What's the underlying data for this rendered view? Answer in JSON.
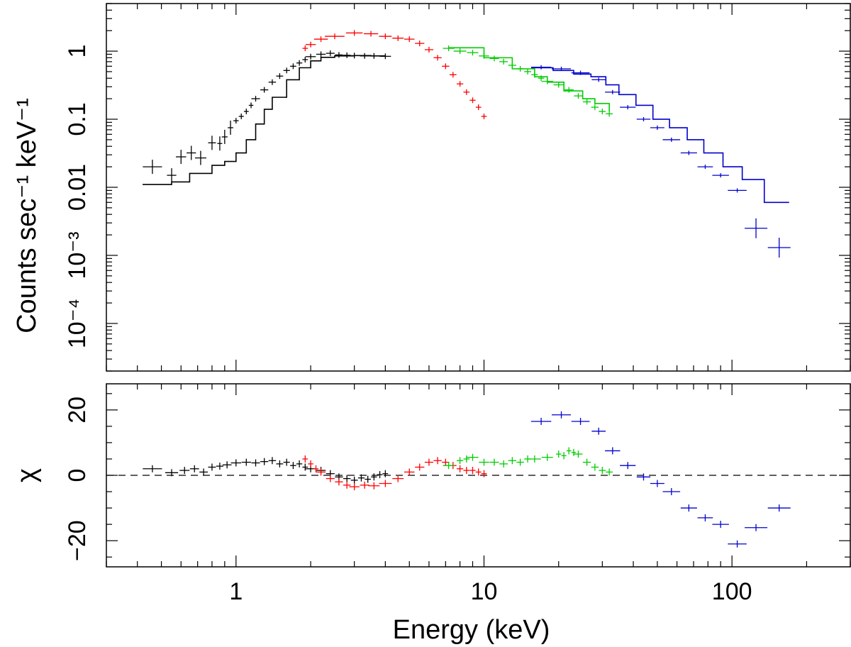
{
  "chart_data": [
    {
      "type": "line",
      "panel": "spectrum",
      "xscale": "log",
      "yscale": "log",
      "xlim": [
        0.3,
        300
      ],
      "ylim": [
        2e-05,
        5
      ],
      "ylabel": "Counts sec⁻¹ keV⁻¹",
      "yticks": [
        {
          "value": 0.0001,
          "label": "10⁻⁴"
        },
        {
          "value": 0.001,
          "label": "10⁻³"
        },
        {
          "value": 0.01,
          "label": "0.01"
        },
        {
          "value": 0.1,
          "label": "0.1"
        },
        {
          "value": 1,
          "label": "1"
        }
      ],
      "series": [
        {
          "name": "dataset-1",
          "color": "#000000",
          "kind": "data",
          "points": [
            [
              0.46,
              0.02
            ],
            [
              0.55,
              0.015
            ],
            [
              0.6,
              0.028
            ],
            [
              0.66,
              0.032
            ],
            [
              0.72,
              0.027
            ],
            [
              0.8,
              0.045
            ],
            [
              0.86,
              0.044
            ],
            [
              0.9,
              0.055
            ],
            [
              0.95,
              0.075
            ],
            [
              1.0,
              0.095
            ],
            [
              1.05,
              0.11
            ],
            [
              1.1,
              0.13
            ],
            [
              1.15,
              0.16
            ],
            [
              1.2,
              0.2
            ],
            [
              1.3,
              0.27
            ],
            [
              1.4,
              0.35
            ],
            [
              1.5,
              0.43
            ],
            [
              1.6,
              0.52
            ],
            [
              1.7,
              0.6
            ],
            [
              1.8,
              0.67
            ],
            [
              1.9,
              0.75
            ],
            [
              2.0,
              0.83
            ],
            [
              2.2,
              0.9
            ],
            [
              2.4,
              0.93
            ],
            [
              2.6,
              0.88
            ],
            [
              2.8,
              0.87
            ],
            [
              3.0,
              0.86
            ],
            [
              3.3,
              0.85
            ],
            [
              3.6,
              0.85
            ],
            [
              4.0,
              0.84
            ]
          ]
        },
        {
          "name": "dataset-1-model",
          "color": "#000000",
          "kind": "model",
          "points": [
            [
              0.42,
              0.011
            ],
            [
              0.55,
              0.012
            ],
            [
              0.65,
              0.016
            ],
            [
              0.8,
              0.021
            ],
            [
              0.9,
              0.024
            ],
            [
              1.0,
              0.032
            ],
            [
              1.1,
              0.05
            ],
            [
              1.2,
              0.085
            ],
            [
              1.3,
              0.14
            ],
            [
              1.4,
              0.21
            ],
            [
              1.6,
              0.38
            ],
            [
              1.8,
              0.57
            ],
            [
              2.0,
              0.72
            ],
            [
              2.2,
              0.81
            ],
            [
              2.5,
              0.85
            ],
            [
              3.0,
              0.86
            ],
            [
              3.5,
              0.85
            ],
            [
              4.0,
              0.84
            ]
          ]
        },
        {
          "name": "dataset-2",
          "color": "#ff0000",
          "kind": "data",
          "points": [
            [
              1.9,
              1.1
            ],
            [
              2.0,
              1.25
            ],
            [
              2.2,
              1.5
            ],
            [
              2.5,
              1.65
            ],
            [
              3.0,
              1.85
            ],
            [
              3.5,
              1.8
            ],
            [
              4.0,
              1.65
            ],
            [
              4.5,
              1.55
            ],
            [
              5.0,
              1.5
            ],
            [
              5.5,
              1.3
            ],
            [
              6.0,
              1.05
            ],
            [
              6.5,
              0.8
            ],
            [
              7.0,
              0.6
            ],
            [
              7.5,
              0.45
            ],
            [
              8.0,
              0.33
            ],
            [
              8.5,
              0.25
            ],
            [
              9.0,
              0.19
            ],
            [
              9.5,
              0.15
            ],
            [
              10.0,
              0.11
            ]
          ]
        },
        {
          "name": "dataset-3",
          "color": "#00cc00",
          "kind": "data",
          "points": [
            [
              7.2,
              1.1
            ],
            [
              8.0,
              1.0
            ],
            [
              9.0,
              0.95
            ],
            [
              10.0,
              0.85
            ],
            [
              11.0,
              0.78
            ],
            [
              12.0,
              0.7
            ],
            [
              13.0,
              0.62
            ],
            [
              14.0,
              0.55
            ],
            [
              15.0,
              0.5
            ],
            [
              16.0,
              0.45
            ],
            [
              17.0,
              0.4
            ],
            [
              18.0,
              0.36
            ],
            [
              20.0,
              0.32
            ],
            [
              22.0,
              0.27
            ],
            [
              24.0,
              0.22
            ],
            [
              26.0,
              0.18
            ],
            [
              28.0,
              0.15
            ],
            [
              30.0,
              0.13
            ],
            [
              32.0,
              0.12
            ]
          ]
        },
        {
          "name": "dataset-3-model",
          "color": "#00cc00",
          "kind": "model",
          "points": [
            [
              7.2,
              1.12
            ],
            [
              10.0,
              0.8
            ],
            [
              13.0,
              0.55
            ],
            [
              16.0,
              0.42
            ],
            [
              18.0,
              0.35
            ],
            [
              21.0,
              0.26
            ],
            [
              25.0,
              0.2
            ],
            [
              28.0,
              0.17
            ],
            [
              32.0,
              0.13
            ]
          ]
        },
        {
          "name": "dataset-4",
          "color": "#0000cc",
          "kind": "data",
          "points": [
            [
              17.0,
              0.58
            ],
            [
              20.5,
              0.55
            ],
            [
              24.5,
              0.48
            ],
            [
              29.0,
              0.38
            ],
            [
              33.0,
              0.25
            ],
            [
              38.0,
              0.15
            ],
            [
              44.0,
              0.1
            ],
            [
              50.0,
              0.075
            ],
            [
              57.0,
              0.05
            ],
            [
              67.0,
              0.032
            ],
            [
              78.0,
              0.02
            ],
            [
              90.0,
              0.015
            ],
            [
              105.0,
              0.009
            ],
            [
              125.0,
              0.0025
            ],
            [
              155.0,
              0.0013
            ]
          ]
        },
        {
          "name": "dataset-4-model",
          "color": "#0000cc",
          "kind": "model",
          "points": [
            [
              15.5,
              0.57
            ],
            [
              19.0,
              0.52
            ],
            [
              23.0,
              0.46
            ],
            [
              27.0,
              0.42
            ],
            [
              31.0,
              0.32
            ],
            [
              35.0,
              0.23
            ],
            [
              41.0,
              0.16
            ],
            [
              48.0,
              0.1
            ],
            [
              56.0,
              0.075
            ],
            [
              66.0,
              0.05
            ],
            [
              77.0,
              0.032
            ],
            [
              92.0,
              0.02
            ],
            [
              110.0,
              0.013
            ],
            [
              135.0,
              0.006
            ],
            [
              170.0,
              0.006
            ]
          ]
        }
      ]
    },
    {
      "type": "scatter",
      "panel": "residuals",
      "xscale": "log",
      "xlim": [
        0.3,
        300
      ],
      "ylim": [
        -28,
        28
      ],
      "xlabel": "Energy (keV)",
      "ylabel": "χ",
      "yticks": [
        {
          "value": -20,
          "label": "−20"
        },
        {
          "value": 0,
          "label": "0"
        },
        {
          "value": 20,
          "label": "20"
        }
      ],
      "xticks": [
        {
          "value": 1,
          "label": "1"
        },
        {
          "value": 10,
          "label": "10"
        },
        {
          "value": 100,
          "label": "100"
        }
      ],
      "zero_line": true,
      "series": [
        {
          "name": "dataset-1",
          "color": "#000000",
          "points": [
            [
              0.46,
              2.0
            ],
            [
              0.55,
              0.8
            ],
            [
              0.62,
              1.5
            ],
            [
              0.68,
              2.0
            ],
            [
              0.74,
              1.0
            ],
            [
              0.8,
              2.5
            ],
            [
              0.86,
              2.8
            ],
            [
              0.92,
              3.2
            ],
            [
              1.0,
              3.8
            ],
            [
              1.1,
              4.0
            ],
            [
              1.2,
              3.8
            ],
            [
              1.3,
              4.2
            ],
            [
              1.4,
              4.5
            ],
            [
              1.5,
              3.5
            ],
            [
              1.6,
              4.0
            ],
            [
              1.7,
              3.0
            ],
            [
              1.8,
              3.5
            ],
            [
              1.9,
              2.5
            ],
            [
              2.0,
              2.0
            ],
            [
              2.2,
              1.5
            ],
            [
              2.4,
              0.5
            ],
            [
              2.6,
              -0.5
            ],
            [
              2.8,
              -1.0
            ],
            [
              3.0,
              -1.5
            ],
            [
              3.2,
              -0.8
            ],
            [
              3.4,
              -1.2
            ],
            [
              3.6,
              -0.5
            ],
            [
              3.8,
              0.2
            ],
            [
              4.0,
              0.5
            ]
          ]
        },
        {
          "name": "dataset-2",
          "color": "#ff0000",
          "points": [
            [
              1.9,
              5.0
            ],
            [
              2.0,
              3.5
            ],
            [
              2.1,
              2.0
            ],
            [
              2.2,
              1.0
            ],
            [
              2.4,
              -1.0
            ],
            [
              2.6,
              -2.0
            ],
            [
              2.8,
              -3.0
            ],
            [
              3.0,
              -3.5
            ],
            [
              3.3,
              -3.0
            ],
            [
              3.6,
              -3.2
            ],
            [
              4.0,
              -2.5
            ],
            [
              4.5,
              -1.0
            ],
            [
              5.0,
              1.0
            ],
            [
              5.5,
              2.5
            ],
            [
              6.0,
              4.0
            ],
            [
              6.5,
              4.5
            ],
            [
              7.0,
              4.0
            ],
            [
              7.5,
              3.0
            ],
            [
              8.0,
              2.0
            ],
            [
              8.5,
              1.5
            ],
            [
              9.0,
              1.5
            ],
            [
              9.5,
              1.0
            ],
            [
              10.0,
              0.5
            ]
          ]
        },
        {
          "name": "dataset-3",
          "color": "#00cc00",
          "points": [
            [
              7.2,
              3.0
            ],
            [
              8.0,
              4.5
            ],
            [
              8.5,
              5.0
            ],
            [
              9.0,
              5.5
            ],
            [
              10.0,
              4.0
            ],
            [
              11.0,
              4.0
            ],
            [
              12.0,
              3.5
            ],
            [
              13.0,
              4.5
            ],
            [
              14.0,
              4.0
            ],
            [
              15.0,
              5.0
            ],
            [
              16.0,
              5.0
            ],
            [
              18.0,
              5.5
            ],
            [
              20.0,
              6.5
            ],
            [
              21.0,
              6.0
            ],
            [
              22.0,
              7.5
            ],
            [
              23.0,
              7.0
            ],
            [
              24.0,
              6.5
            ],
            [
              26.0,
              4.0
            ],
            [
              28.0,
              2.5
            ],
            [
              30.0,
              1.5
            ],
            [
              32.0,
              1.0
            ]
          ]
        },
        {
          "name": "dataset-4",
          "color": "#0000cc",
          "points": [
            [
              17.0,
              16.5
            ],
            [
              20.5,
              18.5
            ],
            [
              24.5,
              16.5
            ],
            [
              29.0,
              13.5
            ],
            [
              33.0,
              7.5
            ],
            [
              38.0,
              3.0
            ],
            [
              44.0,
              -0.5
            ],
            [
              50.0,
              -2.5
            ],
            [
              57.0,
              -5.0
            ],
            [
              67.0,
              -10.0
            ],
            [
              78.0,
              -13.0
            ],
            [
              90.0,
              -15.0
            ],
            [
              105.0,
              -21.0
            ],
            [
              125.0,
              -16.0
            ],
            [
              155.0,
              -10.0
            ]
          ]
        }
      ]
    }
  ]
}
